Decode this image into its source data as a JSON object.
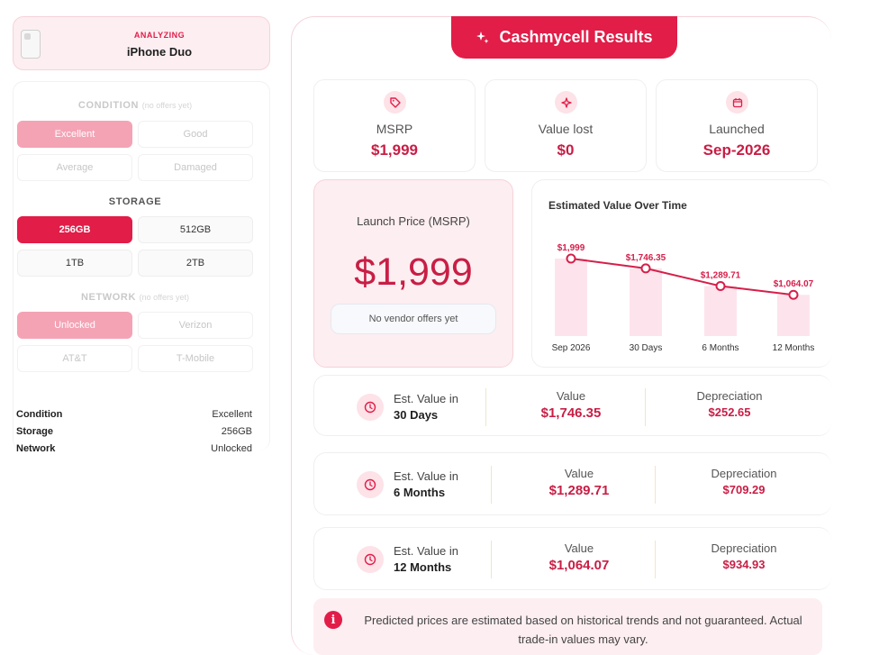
{
  "device": {
    "status": "ANALYZING",
    "name": "iPhone Duo"
  },
  "options": {
    "condition": {
      "title": "CONDITION",
      "note": "(no offers yet)",
      "items": [
        "Excellent",
        "Good",
        "Average",
        "Damaged"
      ],
      "selected": "Excellent"
    },
    "storage": {
      "title": "STORAGE",
      "items": [
        "256GB",
        "512GB",
        "1TB",
        "2TB"
      ],
      "selected": "256GB"
    },
    "network": {
      "title": "NETWORK",
      "note": "(no offers yet)",
      "items": [
        "Unlocked",
        "Verizon",
        "AT&T",
        "T-Mobile"
      ],
      "selected": "Unlocked"
    }
  },
  "summary": [
    {
      "label": "Condition",
      "value": "Excellent"
    },
    {
      "label": "Storage",
      "value": "256GB"
    },
    {
      "label": "Network",
      "value": "Unlocked"
    }
  ],
  "results": {
    "header": "Cashmycell Results",
    "stats": [
      {
        "label": "MSRP",
        "value": "$1,999",
        "icon": "tag-icon"
      },
      {
        "label": "Value lost",
        "value": "$0",
        "icon": "sparkle-icon"
      },
      {
        "label": "Launched",
        "value": "Sep-2026",
        "icon": "calendar-icon"
      }
    ],
    "launch": {
      "label": "Launch Price (MSRP)",
      "price": "$1,999",
      "no_offers": "No vendor offers yet"
    },
    "estimates": [
      {
        "title": "Est. Value in",
        "period": "30 Days",
        "value_label": "Value",
        "value": "$1,746.35",
        "dep_label": "Depreciation",
        "depreciation": "$252.65"
      },
      {
        "title": "Est. Value in",
        "period": "6 Months",
        "value_label": "Value",
        "value": "$1,289.71",
        "dep_label": "Depreciation",
        "depreciation": "$709.29"
      },
      {
        "title": "Est. Value in",
        "period": "12 Months",
        "value_label": "Value",
        "value": "$1,064.07",
        "dep_label": "Depreciation",
        "depreciation": "$934.93"
      }
    ],
    "disclaimer": "Predicted prices are estimated based on historical trends and not guaranteed. Actual trade-in values may vary."
  },
  "colors": {
    "accent": "#e11d48",
    "accent_soft": "#f4a3b5",
    "panel_tint": "#fdeef1"
  },
  "chart_data": {
    "type": "line",
    "title": "Estimated Value Over Time",
    "categories": [
      "Sep 2026",
      "30 Days",
      "6 Months",
      "12 Months"
    ],
    "values": [
      1999,
      1746.35,
      1289.71,
      1064.07
    ],
    "data_labels": [
      "$1,999",
      "$1,746.35",
      "$1,289.71",
      "$1,064.07"
    ],
    "ylim": [
      0,
      2100
    ],
    "grid": false,
    "legend": "none"
  }
}
